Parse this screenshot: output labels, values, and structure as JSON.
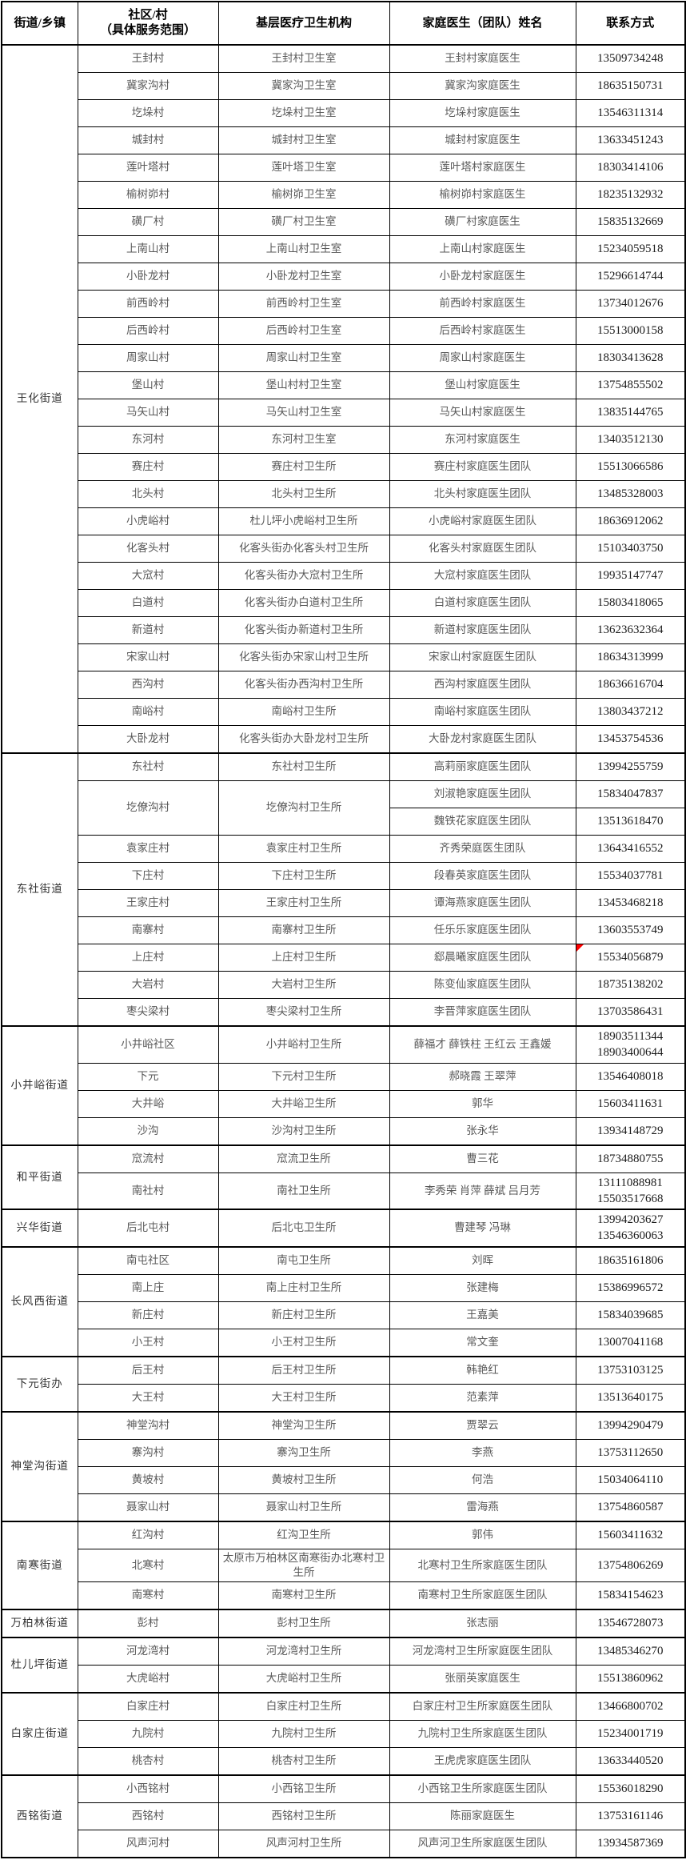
{
  "colors": {
    "background": "#ffffff",
    "border": "#000000",
    "body_text": "#595959",
    "phone_text": "#1a1a1a",
    "marker_red": "#ff0000"
  },
  "table": {
    "header": [
      "街道/乡镇",
      "社区/村\n（具体服务范围）",
      "基层医疗卫生机构",
      "家庭医生（团队）姓名",
      "联系方式"
    ],
    "groups": [
      {
        "street": "王化街道",
        "rows": [
          {
            "village": "王封村",
            "institution": "王封村卫生室",
            "doctor": "王封村家庭医生",
            "phones": [
              "13509734248"
            ]
          },
          {
            "village": "冀家沟村",
            "institution": "冀家沟卫生室",
            "doctor": "冀家沟家庭医生",
            "phones": [
              "18635150731"
            ]
          },
          {
            "village": "圪垛村",
            "institution": "圪垛村卫生室",
            "doctor": "圪垛村家庭医生",
            "phones": [
              "13546311314"
            ]
          },
          {
            "village": "城封村",
            "institution": "城封村卫生室",
            "doctor": "城封村家庭医生",
            "phones": [
              "13633451243"
            ]
          },
          {
            "village": "莲叶塔村",
            "institution": "莲叶塔卫生室",
            "doctor": "莲叶塔村家庭医生",
            "phones": [
              "18303414106"
            ]
          },
          {
            "village": "榆树峁村",
            "institution": "榆树峁卫生室",
            "doctor": "榆树峁村家庭医生",
            "phones": [
              "18235132932"
            ]
          },
          {
            "village": "磺厂村",
            "institution": "磺厂村卫生室",
            "doctor": "磺厂村家庭医生",
            "phones": [
              "15835132669"
            ]
          },
          {
            "village": "上南山村",
            "institution": "上南山村卫生室",
            "doctor": "上南山村家庭医生",
            "phones": [
              "15234059518"
            ]
          },
          {
            "village": "小卧龙村",
            "institution": "小卧龙村卫生室",
            "doctor": "小卧龙村家庭医生",
            "phones": [
              "15296614744"
            ]
          },
          {
            "village": "前西岭村",
            "institution": "前西岭村卫生室",
            "doctor": "前西岭村家庭医生",
            "phones": [
              "13734012676"
            ]
          },
          {
            "village": "后西岭村",
            "institution": "后西岭村卫生室",
            "doctor": "后西岭村家庭医生",
            "phones": [
              "15513000158"
            ]
          },
          {
            "village": "周家山村",
            "institution": "周家山村卫生室",
            "doctor": "周家山村家庭医生",
            "phones": [
              "18303413628"
            ]
          },
          {
            "village": "堡山村",
            "institution": "堡山村村卫生室",
            "doctor": "堡山村家庭医生",
            "phones": [
              "13754855502"
            ]
          },
          {
            "village": "马矢山村",
            "institution": "马矢山村卫生室",
            "doctor": "马矢山村家庭医生",
            "phones": [
              "13835144765"
            ]
          },
          {
            "village": "东河村",
            "institution": "东河村卫生室",
            "doctor": "东河村家庭医生",
            "phones": [
              "13403512130"
            ]
          },
          {
            "village": "赛庄村",
            "institution": "赛庄村卫生所",
            "doctor": "赛庄村家庭医生团队",
            "phones": [
              "15513066586"
            ]
          },
          {
            "village": "北头村",
            "institution": "北头村卫生所",
            "doctor": "北头村家庭医生团队",
            "phones": [
              "13485328003"
            ]
          },
          {
            "village": "小虎峪村",
            "institution": "杜儿坪小虎峪村卫生所",
            "doctor": "小虎峪村家庭医生团队",
            "phones": [
              "18636912062"
            ]
          },
          {
            "village": "化客头村",
            "institution": "化客头街办化客头村卫生所",
            "doctor": "化客头村家庭医生团队",
            "phones": [
              "15103403750"
            ]
          },
          {
            "village": "大窊村",
            "institution": "化客头街办大窊村卫生所",
            "doctor": "大窊村家庭医生团队",
            "phones": [
              "19935147747"
            ]
          },
          {
            "village": "白道村",
            "institution": "化客头街办白道村卫生所",
            "doctor": "白道村家庭医生团队",
            "phones": [
              "15803418065"
            ]
          },
          {
            "village": "新道村",
            "institution": "化客头街办新道村卫生所",
            "doctor": "新道村家庭医生团队",
            "phones": [
              "13623632364"
            ]
          },
          {
            "village": "宋家山村",
            "institution": "化客头街办宋家山村卫生所",
            "doctor": "宋家山村家庭医生团队",
            "phones": [
              "18634313999"
            ]
          },
          {
            "village": "西沟村",
            "institution": "化客头街办西沟村卫生所",
            "doctor": "西沟村家庭医生团队",
            "phones": [
              "18636616704"
            ]
          },
          {
            "village": "南峪村",
            "institution": "南峪村卫生所",
            "doctor": "南峪村家庭医生团队",
            "phones": [
              "13803437212"
            ]
          },
          {
            "village": "大卧龙村",
            "institution": "化客头街办大卧龙村卫生所",
            "doctor": "大卧龙村家庭医生团队",
            "phones": [
              "13453754536"
            ]
          }
        ]
      },
      {
        "street": "东社街道",
        "rows": [
          {
            "village": "东社村",
            "institution": "东社村卫生所",
            "doctor": "高莉丽家庭医生团队",
            "phones": [
              "13994255759"
            ]
          },
          {
            "village": "圪僚沟村",
            "institution": "圪僚沟村卫生所",
            "subrows": [
              {
                "doctor": "刘淑艳家庭医生团队",
                "phones": [
                  "15834047837"
                ]
              },
              {
                "doctor": "魏铁花家庭医生团队",
                "phones": [
                  "13513618470"
                ]
              }
            ]
          },
          {
            "village": "袁家庄村",
            "institution": "袁家庄村卫生所",
            "doctor": "齐秀荣庭医生团队",
            "phones": [
              "13643416552"
            ]
          },
          {
            "village": "下庄村",
            "institution": "下庄村卫生所",
            "doctor": "段春英家庭医生团队",
            "phones": [
              "15534037781"
            ]
          },
          {
            "village": "王家庄村",
            "institution": "王家庄村卫生所",
            "doctor": "谭海燕家庭医生团队",
            "phones": [
              "13453468218"
            ]
          },
          {
            "village": "南寨村",
            "institution": "南寨村卫生所",
            "doctor": "任乐乐家庭医生团队",
            "phones": [
              "13603553749"
            ]
          },
          {
            "village": "上庄村",
            "institution": "上庄村卫生所",
            "doctor": "郄晨曦家庭医生团队",
            "phones": [
              "15534056879"
            ],
            "marker": "red-corner"
          },
          {
            "village": "大岩村",
            "institution": "大岩村卫生所",
            "doctor": "陈变仙家庭医生团队",
            "phones": [
              "18735138202"
            ]
          },
          {
            "village": "枣尖梁村",
            "institution": "枣尖梁村卫生所",
            "doctor": "李晋萍家庭医生团队",
            "phones": [
              "13703586431"
            ]
          }
        ]
      },
      {
        "street": "小井峪街道",
        "rows": [
          {
            "village": "小井峪社区",
            "institution": "小井峪村卫生所",
            "doctor": "薛福才 薛铁柱 王红云 王鑫媛",
            "phones": [
              "18903511344",
              "18903400644"
            ]
          },
          {
            "village": "下元",
            "institution": "下元村卫生所",
            "doctor": "郝晓霞 王翠萍",
            "phones": [
              "13546408018"
            ]
          },
          {
            "village": "大井峪",
            "institution": "大井峪卫生所",
            "doctor": "郭华",
            "phones": [
              "15603411631"
            ]
          },
          {
            "village": "沙沟",
            "institution": "沙沟村卫生所",
            "doctor": "张永华",
            "phones": [
              "13934148729"
            ]
          }
        ]
      },
      {
        "street": "和平街道",
        "rows": [
          {
            "village": "窊流村",
            "institution": "窊流卫生所",
            "doctor": "曹三花",
            "phones": [
              "18734880755"
            ]
          },
          {
            "village": "南社村",
            "institution": "南社卫生所",
            "doctor": "李秀荣 肖萍 薛斌 吕月芳",
            "phones": [
              "13111088981",
              "15503517668"
            ]
          }
        ]
      },
      {
        "street": "兴华街道",
        "rows": [
          {
            "village": "后北屯村",
            "institution": "后北屯卫生所",
            "doctor": "曹建琴 冯琳",
            "phones": [
              "13994203627",
              "13546360063"
            ]
          }
        ]
      },
      {
        "street": "长风西街道",
        "rows": [
          {
            "village": "南屯社区",
            "institution": "南屯卫生所",
            "doctor": "刘晖",
            "phones": [
              "18635161806"
            ]
          },
          {
            "village": "南上庄",
            "institution": "南上庄村卫生所",
            "doctor": "张建梅",
            "phones": [
              "15386996572"
            ]
          },
          {
            "village": "新庄村",
            "institution": "新庄村卫生所",
            "doctor": "王嘉美",
            "phones": [
              "15834039685"
            ]
          },
          {
            "village": "小王村",
            "institution": "小王村卫生所",
            "doctor": "常文奎",
            "phones": [
              "13007041168"
            ]
          }
        ]
      },
      {
        "street": "下元街办",
        "rows": [
          {
            "village": "后王村",
            "institution": "后王村卫生所",
            "doctor": "韩艳红",
            "phones": [
              "13753103125"
            ]
          },
          {
            "village": "大王村",
            "institution": "大王村卫生所",
            "doctor": "范素萍",
            "phones": [
              "13513640175"
            ]
          }
        ]
      },
      {
        "street": "神堂沟街道",
        "rows": [
          {
            "village": "神堂沟村",
            "institution": "神堂沟卫生所",
            "doctor": "贾翠云",
            "phones": [
              "13994290479"
            ]
          },
          {
            "village": "寨沟村",
            "institution": "寨沟卫生所",
            "doctor": "李燕",
            "phones": [
              "13753112650"
            ]
          },
          {
            "village": "黄坡村",
            "institution": "黄坡村卫生所",
            "doctor": "何浩",
            "phones": [
              "15034064110"
            ]
          },
          {
            "village": "聂家山村",
            "institution": "聂家山村卫生所",
            "doctor": "雷海燕",
            "phones": [
              "13754860587"
            ]
          }
        ]
      },
      {
        "street": "南寒街道",
        "rows": [
          {
            "village": "红沟村",
            "institution": "红沟卫生所",
            "doctor": "郭伟",
            "phones": [
              "15603411632"
            ]
          },
          {
            "village": "北寒村",
            "institution": "太原市万柏林区南寒街办北寒村卫生所",
            "doctor": "北寒村卫生所家庭医生团队",
            "phones": [
              "13754806269"
            ]
          },
          {
            "village": "南寒村",
            "institution": "南寒村卫生所",
            "doctor": "南寒村卫生所家庭医生团队",
            "phones": [
              "15834154623"
            ]
          }
        ]
      },
      {
        "street": "万柏林街道",
        "rows": [
          {
            "village": "彭村",
            "institution": "彭村卫生所",
            "doctor": "张志丽",
            "phones": [
              "13546728073"
            ]
          }
        ]
      },
      {
        "street": "杜儿坪街道",
        "rows": [
          {
            "village": "河龙湾村",
            "institution": "河龙湾村卫生所",
            "doctor": "河龙湾村卫生所家庭医生团队",
            "phones": [
              "13485346270"
            ]
          },
          {
            "village": "大虎峪村",
            "institution": "大虎峪村卫生所",
            "doctor": "张丽英家庭医生",
            "phones": [
              "15513860962"
            ]
          }
        ]
      },
      {
        "street": "白家庄街道",
        "rows": [
          {
            "village": "白家庄村",
            "institution": "白家庄村卫生所",
            "doctor": "白家庄村卫生所家庭医生团队",
            "phones": [
              "13466800702"
            ]
          },
          {
            "village": "九院村",
            "institution": "九院村卫生所",
            "doctor": "九院村卫生所家庭医生团队",
            "phones": [
              "15234001719"
            ]
          },
          {
            "village": "桃杏村",
            "institution": "桃杏村卫生所",
            "doctor": "王虎虎家庭医生团队",
            "phones": [
              "13633440520"
            ]
          }
        ]
      },
      {
        "street": "西铭街道",
        "rows": [
          {
            "village": "小西铭村",
            "institution": "小西铭卫生所",
            "doctor": "小西铭卫生所家庭医生团队",
            "phones": [
              "15536018290"
            ]
          },
          {
            "village": "西铭村",
            "institution": "西铭村卫生所",
            "doctor": "陈丽家庭医生",
            "phones": [
              "13753161146"
            ]
          },
          {
            "village": "风声河村",
            "institution": "风声河村卫生所",
            "doctor": "风声河卫生所家庭医生团队",
            "phones": [
              "13934587369"
            ]
          }
        ]
      }
    ]
  }
}
